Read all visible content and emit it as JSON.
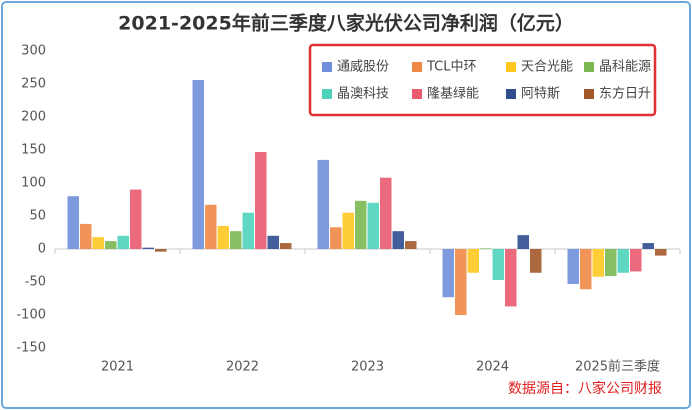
{
  "chart_data": {
    "type": "bar",
    "title": "2021-2025年前三季度八家光伏公司净利润（亿元）",
    "categories": [
      "2021",
      "2022",
      "2023",
      "2024",
      "2025前三季度"
    ],
    "series": [
      {
        "name": "通威股份",
        "color": "#6f8fdc",
        "values": [
          80,
          256,
          135,
          -73,
          -53
        ]
      },
      {
        "name": "TCL中环",
        "color": "#ee8a45",
        "values": [
          38,
          67,
          33,
          -100,
          -61
        ]
      },
      {
        "name": "天合光能",
        "color": "#ffc820",
        "values": [
          18,
          35,
          55,
          -36,
          -42
        ]
      },
      {
        "name": "晶科能源",
        "color": "#7cb852",
        "values": [
          12,
          27,
          73,
          1,
          -41
        ]
      },
      {
        "name": "晶澳科技",
        "color": "#4fd3bd",
        "values": [
          20,
          55,
          70,
          -47,
          -36
        ]
      },
      {
        "name": "隆基绿能",
        "color": "#ea5a70",
        "values": [
          90,
          147,
          108,
          -87,
          -34
        ]
      },
      {
        "name": "阿特斯",
        "color": "#2f4d8f",
        "values": [
          2,
          20,
          27,
          21,
          9
        ]
      },
      {
        "name": "东方日升",
        "color": "#a3582a",
        "values": [
          -4,
          9,
          12,
          -36,
          -10
        ]
      }
    ],
    "ylim": [
      -150,
      300
    ],
    "yticks": [
      -150,
      -100,
      -50,
      0,
      50,
      100,
      150,
      200,
      250,
      300
    ],
    "grid": false,
    "legend": "top-right",
    "annotation": "数据源自：八家公司财报"
  }
}
